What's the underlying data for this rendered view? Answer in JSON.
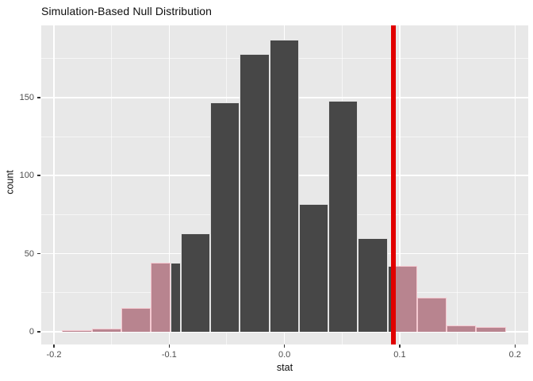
{
  "title": "Simulation-Based Null Distribution",
  "chart_data": {
    "type": "bar",
    "subtype": "histogram-with-shaded-p-value",
    "title": "Simulation-Based Null Distribution",
    "xlabel": "stat",
    "ylabel": "count",
    "x_domain": [
      -0.211,
      0.2115
    ],
    "y_domain": [
      -8.2,
      196.5
    ],
    "x_ticks": [
      {
        "v": -0.2,
        "label": "-0.2"
      },
      {
        "v": -0.1,
        "label": "-0.1"
      },
      {
        "v": 0.0,
        "label": "0.0"
      },
      {
        "v": 0.1,
        "label": "0.1"
      },
      {
        "v": 0.2,
        "label": "0.2"
      }
    ],
    "y_ticks": [
      {
        "v": 0,
        "label": "0"
      },
      {
        "v": 50,
        "label": "50"
      },
      {
        "v": 100,
        "label": "100"
      },
      {
        "v": 150,
        "label": "150"
      }
    ],
    "x_minor_gridlines": [
      -0.15,
      -0.05,
      0.05,
      0.15
    ],
    "y_minor_gridlines": [
      25,
      75,
      125,
      175
    ],
    "grid": "on",
    "legend": "none",
    "obs_stat_line": 0.0948,
    "bars": [
      {
        "x0": -0.193,
        "x1": -0.1671,
        "count": 1,
        "region": "tail"
      },
      {
        "x0": -0.1671,
        "x1": -0.1416,
        "count": 2,
        "region": "tail"
      },
      {
        "x0": -0.1416,
        "x1": -0.1159,
        "count": 15,
        "region": "tail"
      },
      {
        "x0": -0.1159,
        "x1": -0.0985,
        "count": 44,
        "region": "tail"
      },
      {
        "x0": -0.0985,
        "x1": -0.0901,
        "count": 44,
        "region": "null"
      },
      {
        "x0": -0.0901,
        "x1": -0.0644,
        "count": 63,
        "region": "null"
      },
      {
        "x0": -0.0644,
        "x1": -0.0389,
        "count": 147,
        "region": "null"
      },
      {
        "x0": -0.0389,
        "x1": -0.0131,
        "count": 178,
        "region": "null"
      },
      {
        "x0": -0.0131,
        "x1": 0.0126,
        "count": 187,
        "region": "null"
      },
      {
        "x0": 0.0126,
        "x1": 0.0382,
        "count": 82,
        "region": "null"
      },
      {
        "x0": 0.0382,
        "x1": 0.0638,
        "count": 148,
        "region": "null"
      },
      {
        "x0": 0.0638,
        "x1": 0.0895,
        "count": 60,
        "region": "null"
      },
      {
        "x0": 0.0895,
        "x1": 0.0948,
        "count": 42,
        "region": "null"
      },
      {
        "x0": 0.0948,
        "x1": 0.1151,
        "count": 42,
        "region": "tail"
      },
      {
        "x0": 0.1151,
        "x1": 0.1407,
        "count": 22,
        "region": "tail"
      },
      {
        "x0": 0.1407,
        "x1": 0.1663,
        "count": 4,
        "region": "tail"
      },
      {
        "x0": 0.1663,
        "x1": 0.1919,
        "count": 3,
        "region": "tail"
      }
    ],
    "colors": {
      "null_fill": "#474747",
      "tail_fill": "#B8848F",
      "tail_border": "#F5C9D1",
      "obs_line": "#E10000",
      "panel_bg": "#E8E8E8",
      "grid": "#FFFFFF",
      "tick_text": "#4D4D4D",
      "title_text": "#0d0d0d"
    }
  }
}
